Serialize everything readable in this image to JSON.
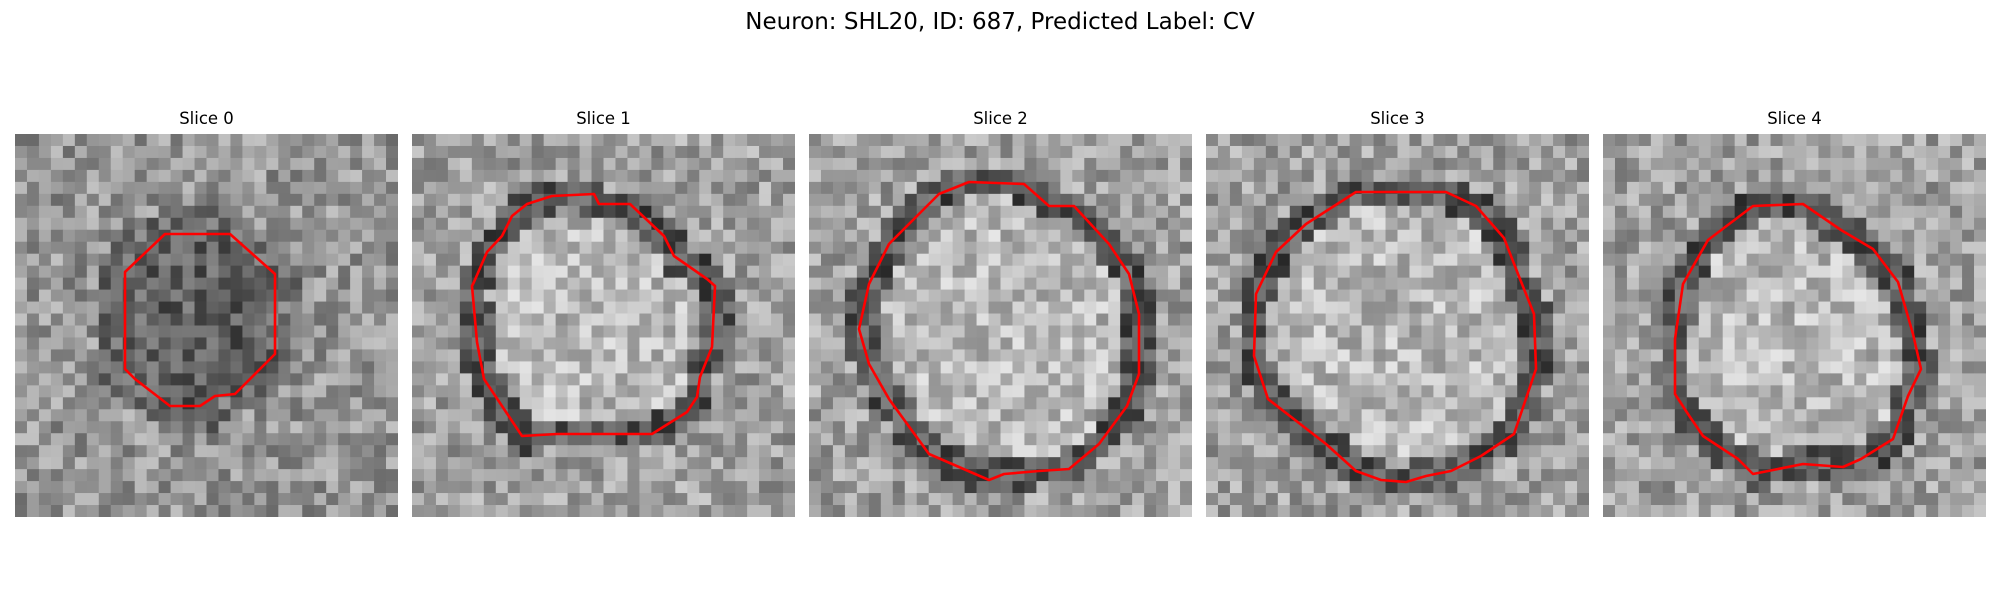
{
  "figure": {
    "title": "Neuron: SHL20, ID: 687, Predicted Label: CV"
  },
  "slices": [
    {
      "label": "Slice 0",
      "shape": "octagon",
      "interior_tone": "dark",
      "outline_color": "#ff0000"
    },
    {
      "label": "Slice 1",
      "shape": "polygon",
      "interior_tone": "light",
      "outline_color": "#ff0000"
    },
    {
      "label": "Slice 2",
      "shape": "polygon",
      "interior_tone": "light",
      "outline_color": "#ff0000"
    },
    {
      "label": "Slice 3",
      "shape": "polygon",
      "interior_tone": "light",
      "outline_color": "#ff0000"
    },
    {
      "label": "Slice 4",
      "shape": "polygon",
      "interior_tone": "light",
      "outline_color": "#ff0000"
    }
  ],
  "colors": {
    "outline": "#ff0000",
    "colormap": "gray"
  }
}
